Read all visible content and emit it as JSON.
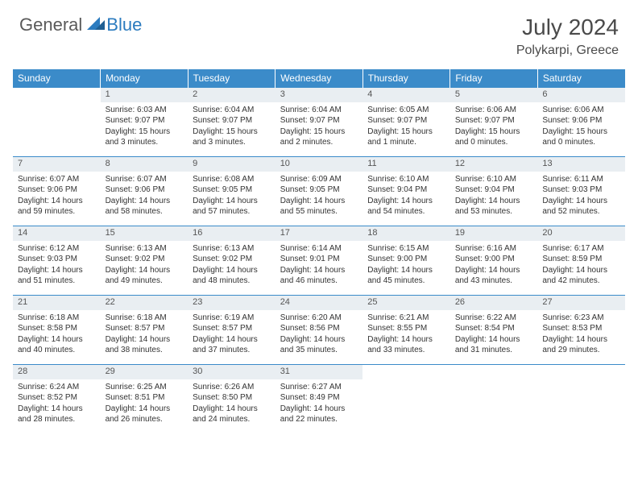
{
  "brand": {
    "general": "General",
    "blue": "Blue"
  },
  "title": "July 2024",
  "location": "Polykarpi, Greece",
  "colors": {
    "header_bg": "#3b8bc9",
    "header_text": "#ffffff",
    "daynum_bg": "#e9eef2",
    "border": "#3b8bc9",
    "logo_blue": "#2b7bbf",
    "logo_gray": "#5a5a5a"
  },
  "weekdays": [
    "Sunday",
    "Monday",
    "Tuesday",
    "Wednesday",
    "Thursday",
    "Friday",
    "Saturday"
  ],
  "weeks": [
    {
      "nums": [
        "",
        "1",
        "2",
        "3",
        "4",
        "5",
        "6"
      ],
      "cells": [
        "",
        "Sunrise: 6:03 AM\nSunset: 9:07 PM\nDaylight: 15 hours and 3 minutes.",
        "Sunrise: 6:04 AM\nSunset: 9:07 PM\nDaylight: 15 hours and 3 minutes.",
        "Sunrise: 6:04 AM\nSunset: 9:07 PM\nDaylight: 15 hours and 2 minutes.",
        "Sunrise: 6:05 AM\nSunset: 9:07 PM\nDaylight: 15 hours and 1 minute.",
        "Sunrise: 6:06 AM\nSunset: 9:07 PM\nDaylight: 15 hours and 0 minutes.",
        "Sunrise: 6:06 AM\nSunset: 9:06 PM\nDaylight: 15 hours and 0 minutes."
      ]
    },
    {
      "nums": [
        "7",
        "8",
        "9",
        "10",
        "11",
        "12",
        "13"
      ],
      "cells": [
        "Sunrise: 6:07 AM\nSunset: 9:06 PM\nDaylight: 14 hours and 59 minutes.",
        "Sunrise: 6:07 AM\nSunset: 9:06 PM\nDaylight: 14 hours and 58 minutes.",
        "Sunrise: 6:08 AM\nSunset: 9:05 PM\nDaylight: 14 hours and 57 minutes.",
        "Sunrise: 6:09 AM\nSunset: 9:05 PM\nDaylight: 14 hours and 55 minutes.",
        "Sunrise: 6:10 AM\nSunset: 9:04 PM\nDaylight: 14 hours and 54 minutes.",
        "Sunrise: 6:10 AM\nSunset: 9:04 PM\nDaylight: 14 hours and 53 minutes.",
        "Sunrise: 6:11 AM\nSunset: 9:03 PM\nDaylight: 14 hours and 52 minutes."
      ]
    },
    {
      "nums": [
        "14",
        "15",
        "16",
        "17",
        "18",
        "19",
        "20"
      ],
      "cells": [
        "Sunrise: 6:12 AM\nSunset: 9:03 PM\nDaylight: 14 hours and 51 minutes.",
        "Sunrise: 6:13 AM\nSunset: 9:02 PM\nDaylight: 14 hours and 49 minutes.",
        "Sunrise: 6:13 AM\nSunset: 9:02 PM\nDaylight: 14 hours and 48 minutes.",
        "Sunrise: 6:14 AM\nSunset: 9:01 PM\nDaylight: 14 hours and 46 minutes.",
        "Sunrise: 6:15 AM\nSunset: 9:00 PM\nDaylight: 14 hours and 45 minutes.",
        "Sunrise: 6:16 AM\nSunset: 9:00 PM\nDaylight: 14 hours and 43 minutes.",
        "Sunrise: 6:17 AM\nSunset: 8:59 PM\nDaylight: 14 hours and 42 minutes."
      ]
    },
    {
      "nums": [
        "21",
        "22",
        "23",
        "24",
        "25",
        "26",
        "27"
      ],
      "cells": [
        "Sunrise: 6:18 AM\nSunset: 8:58 PM\nDaylight: 14 hours and 40 minutes.",
        "Sunrise: 6:18 AM\nSunset: 8:57 PM\nDaylight: 14 hours and 38 minutes.",
        "Sunrise: 6:19 AM\nSunset: 8:57 PM\nDaylight: 14 hours and 37 minutes.",
        "Sunrise: 6:20 AM\nSunset: 8:56 PM\nDaylight: 14 hours and 35 minutes.",
        "Sunrise: 6:21 AM\nSunset: 8:55 PM\nDaylight: 14 hours and 33 minutes.",
        "Sunrise: 6:22 AM\nSunset: 8:54 PM\nDaylight: 14 hours and 31 minutes.",
        "Sunrise: 6:23 AM\nSunset: 8:53 PM\nDaylight: 14 hours and 29 minutes."
      ]
    },
    {
      "nums": [
        "28",
        "29",
        "30",
        "31",
        "",
        "",
        ""
      ],
      "cells": [
        "Sunrise: 6:24 AM\nSunset: 8:52 PM\nDaylight: 14 hours and 28 minutes.",
        "Sunrise: 6:25 AM\nSunset: 8:51 PM\nDaylight: 14 hours and 26 minutes.",
        "Sunrise: 6:26 AM\nSunset: 8:50 PM\nDaylight: 14 hours and 24 minutes.",
        "Sunrise: 6:27 AM\nSunset: 8:49 PM\nDaylight: 14 hours and 22 minutes.",
        "",
        "",
        ""
      ]
    }
  ]
}
